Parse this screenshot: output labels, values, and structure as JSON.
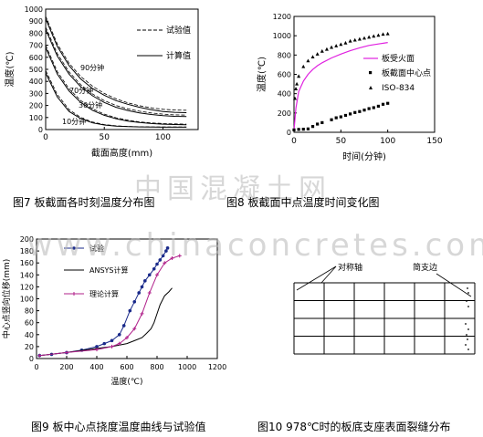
{
  "captions": {
    "fig7": "图7 板截面各时刻温度分布图",
    "fig8": "图8 板截面中点温度时间变化图",
    "fig9": "图9 板中心点挠度温度曲线与试验值",
    "fig10_a": "图10",
    "fig10_b": "978℃时的板底支座表面裂缝分布"
  },
  "watermarks": {
    "cn": "中国混凝土网",
    "url": "www.chinaconcretes.com"
  },
  "chart_data": [
    {
      "type": "line",
      "xlabel": "截面高度(mm)",
      "ylabel": "温度(℃)",
      "xlim": [
        0,
        130
      ],
      "ylim": [
        0,
        1000
      ],
      "xticks": [
        0,
        50,
        100
      ],
      "yticks": [
        0,
        100,
        200,
        300,
        400,
        500,
        600,
        700,
        800,
        900,
        1000
      ],
      "legend": [
        "试验值",
        "计算值"
      ],
      "annotations": [
        "90分钟",
        "70分钟",
        "30分钟",
        "10分钟"
      ],
      "series": [
        {
          "name": "90分钟 计算值",
          "x": [
            0,
            10,
            20,
            30,
            40,
            50,
            60,
            70,
            80,
            90,
            100,
            110,
            120
          ],
          "y": [
            920,
            690,
            530,
            420,
            340,
            285,
            240,
            210,
            185,
            165,
            150,
            143,
            140
          ]
        },
        {
          "name": "90分钟 试验值",
          "x": [
            0,
            10,
            20,
            30,
            40,
            50,
            60,
            70,
            80,
            90,
            100,
            110,
            120
          ],
          "y": [
            940,
            710,
            550,
            440,
            360,
            300,
            255,
            222,
            198,
            180,
            168,
            162,
            160
          ]
        },
        {
          "name": "70分钟 计算值",
          "x": [
            0,
            10,
            20,
            30,
            40,
            50,
            60,
            70,
            80,
            90,
            100,
            110,
            120
          ],
          "y": [
            830,
            610,
            460,
            355,
            280,
            225,
            185,
            158,
            138,
            125,
            115,
            110,
            108
          ]
        },
        {
          "name": "70分钟 试验值",
          "x": [
            0,
            10,
            20,
            30,
            40,
            50,
            60,
            70,
            80,
            90,
            100,
            110,
            120
          ],
          "y": [
            850,
            630,
            478,
            372,
            295,
            240,
            200,
            172,
            152,
            138,
            128,
            122,
            120
          ]
        },
        {
          "name": "30分钟 计算值",
          "x": [
            0,
            10,
            20,
            30,
            40,
            50,
            60,
            70,
            80,
            90,
            100,
            110,
            120
          ],
          "y": [
            680,
            460,
            320,
            225,
            160,
            118,
            90,
            70,
            58,
            50,
            45,
            42,
            40
          ]
        },
        {
          "name": "30分钟 试验值",
          "x": [
            0,
            10,
            20,
            30,
            40,
            50,
            60,
            70,
            80,
            90,
            100,
            110,
            120
          ],
          "y": [
            700,
            480,
            338,
            240,
            172,
            128,
            98,
            78,
            64,
            55,
            50,
            47,
            45
          ]
        },
        {
          "name": "10分钟 计算值",
          "x": [
            0,
            10,
            20,
            30,
            40,
            50,
            60,
            70,
            80,
            90,
            100,
            110,
            120
          ],
          "y": [
            470,
            270,
            150,
            90,
            55,
            38,
            28,
            24,
            22,
            21,
            20,
            20,
            20
          ]
        },
        {
          "name": "10分钟 试验值",
          "x": [
            0,
            10,
            20,
            30,
            40,
            50,
            60,
            70,
            80,
            90,
            100,
            110,
            120
          ],
          "y": [
            490,
            290,
            165,
            100,
            62,
            42,
            31,
            26,
            23,
            22,
            21,
            21,
            21
          ]
        }
      ]
    },
    {
      "type": "scatter",
      "xlabel": "时间(分钟)",
      "ylabel": "温度(℃)",
      "xlim": [
        0,
        150
      ],
      "ylim": [
        0,
        1200
      ],
      "xticks": [
        0,
        50,
        100,
        150
      ],
      "yticks": [
        0,
        200,
        400,
        600,
        800,
        1000,
        1200
      ],
      "legend": [
        "板受火面",
        "板截面中心点",
        "ISO-834"
      ],
      "series": [
        {
          "name": "板受火面",
          "x": [
            0,
            2,
            5,
            10,
            15,
            20,
            25,
            30,
            40,
            50,
            60,
            70,
            80,
            90,
            100
          ],
          "y": [
            20,
            250,
            420,
            530,
            600,
            650,
            690,
            720,
            770,
            810,
            845,
            875,
            900,
            915,
            930
          ]
        },
        {
          "name": "板截面中心点",
          "x": [
            0,
            5,
            10,
            15,
            20,
            25,
            30,
            40,
            45,
            50,
            55,
            60,
            65,
            70,
            75,
            80,
            85,
            90,
            95,
            100
          ],
          "y": [
            25,
            30,
            32,
            35,
            60,
            85,
            100,
            130,
            150,
            160,
            175,
            190,
            205,
            215,
            230,
            245,
            255,
            270,
            290,
            300
          ]
        },
        {
          "name": "ISO-834",
          "x": [
            1,
            2,
            3,
            5,
            10,
            15,
            20,
            25,
            30,
            35,
            40,
            45,
            50,
            55,
            60,
            65,
            70,
            75,
            80,
            85,
            90,
            95,
            100
          ],
          "y": [
            350,
            450,
            500,
            580,
            680,
            740,
            780,
            810,
            840,
            860,
            880,
            895,
            910,
            925,
            945,
            955,
            965,
            975,
            985,
            995,
            1005,
            1015,
            1020
          ]
        }
      ]
    },
    {
      "type": "line",
      "xlabel": "温度(℃)",
      "ylabel": "中心点竖向位移(mm)",
      "xlim": [
        0,
        1200
      ],
      "ylim": [
        0,
        200
      ],
      "xticks": [
        0,
        200,
        400,
        600,
        800,
        1000,
        1200
      ],
      "yticks": [
        0,
        20,
        40,
        60,
        80,
        100,
        120,
        140,
        160,
        180,
        200
      ],
      "legend": [
        "试验",
        "ANSYS计算",
        "理论计算"
      ],
      "series": [
        {
          "name": "试验",
          "x": [
            20,
            100,
            200,
            300,
            400,
            450,
            500,
            550,
            580,
            620,
            650,
            680,
            700,
            720,
            750,
            780,
            800,
            820,
            840,
            860,
            870
          ],
          "y": [
            5,
            7,
            10,
            14,
            20,
            25,
            30,
            40,
            55,
            80,
            95,
            110,
            120,
            130,
            140,
            150,
            158,
            165,
            172,
            180,
            185
          ]
        },
        {
          "name": "ANSYS计算",
          "x": [
            20,
            200,
            400,
            500,
            600,
            650,
            700,
            730,
            760,
            780,
            800,
            820,
            850,
            880,
            900
          ],
          "y": [
            5,
            10,
            17,
            20,
            25,
            30,
            35,
            42,
            50,
            60,
            75,
            90,
            105,
            112,
            118
          ]
        },
        {
          "name": "理论计算",
          "x": [
            20,
            200,
            400,
            500,
            550,
            600,
            650,
            700,
            750,
            800,
            850,
            900,
            950
          ],
          "y": [
            5,
            10,
            15,
            20,
            25,
            35,
            50,
            75,
            110,
            140,
            160,
            168,
            172
          ]
        }
      ]
    },
    {
      "type": "table",
      "labels": [
        "对称轴",
        "简支边"
      ],
      "rows": 4,
      "cols": 6
    }
  ]
}
